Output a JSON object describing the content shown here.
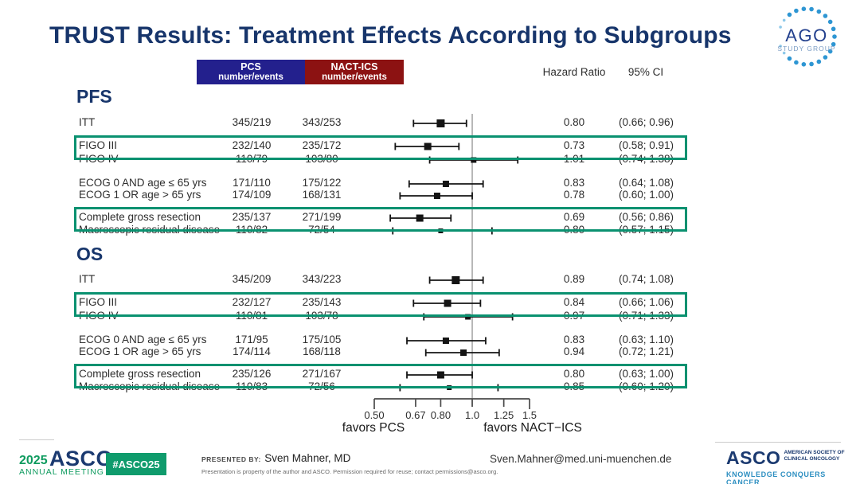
{
  "title": "TRUST Results: Treatment Effects According to Subgroups",
  "ago_logo": {
    "name": "AGO",
    "subtitle": "STUDY GROUP"
  },
  "columns": {
    "pcs_line1": "PCS",
    "pcs_line2": "number/events",
    "nact_line1": "NACT-ICS",
    "nact_line2": "number/events",
    "hazard_ratio": "Hazard Ratio",
    "ci": "95% CI"
  },
  "colors": {
    "pcs_header_bg": "#23208d",
    "nact_header_bg": "#8c1212",
    "highlight_green": "#0a9170",
    "title_navy": "#17356b",
    "asco_green": "#0f9b6c",
    "asco_navy": "#1b3a70",
    "tagline_blue": "#2d8fc1"
  },
  "chart_data": {
    "type": "forest",
    "scale": "log",
    "x_range": [
      0.5,
      1.5
    ],
    "x_ticks": [
      0.5,
      0.67,
      0.8,
      1.0,
      1.25,
      1.5
    ],
    "x_tick_labels": [
      "0.50",
      "0.67",
      "0.80",
      "1.0",
      "1.25",
      "1.5"
    ],
    "reference_line": 1.0,
    "favors_left": "favors PCS",
    "favors_right": "favors NACT−ICS",
    "sections": [
      {
        "label": "PFS",
        "rows": [
          {
            "label": "ITT",
            "pcs": "345/219",
            "nact": "343/253",
            "hr": 0.8,
            "ci_low": 0.66,
            "ci_high": 0.96,
            "hr_text": "0.80",
            "ci_text": "(0.66; 0.96)",
            "highlight": false,
            "marker": 10
          },
          {
            "label": "FIGO III",
            "pcs": "232/140",
            "nact": "235/172",
            "hr": 0.73,
            "ci_low": 0.58,
            "ci_high": 0.91,
            "hr_text": "0.73",
            "ci_text": "(0.58; 0.91)",
            "highlight": true,
            "marker": 9
          },
          {
            "label": "FIGO IV",
            "pcs": "110/79",
            "nact": "103/80",
            "hr": 1.01,
            "ci_low": 0.74,
            "ci_high": 1.38,
            "hr_text": "1.01",
            "ci_text": "(0.74; 1.38)",
            "highlight": false,
            "marker": 7
          },
          {
            "label": "ECOG 0 AND age ≤ 65 yrs",
            "pcs": "171/110",
            "nact": "175/122",
            "hr": 0.83,
            "ci_low": 0.64,
            "ci_high": 1.08,
            "hr_text": "0.83",
            "ci_text": "(0.64; 1.08)",
            "highlight": false,
            "marker": 8
          },
          {
            "label": "ECOG 1 OR age > 65 yrs",
            "pcs": "174/109",
            "nact": "168/131",
            "hr": 0.78,
            "ci_low": 0.6,
            "ci_high": 1.0,
            "hr_text": "0.78",
            "ci_text": "(0.60; 1.00)",
            "highlight": false,
            "marker": 8
          },
          {
            "label": "Complete gross resection",
            "pcs": "235/137",
            "nact": "271/199",
            "hr": 0.69,
            "ci_low": 0.56,
            "ci_high": 0.86,
            "hr_text": "0.69",
            "ci_text": "(0.56; 0.86)",
            "highlight": true,
            "marker": 9
          },
          {
            "label": "Macroscopic residual disease",
            "pcs": "110/82",
            "nact": "72/54",
            "hr": 0.8,
            "ci_low": 0.57,
            "ci_high": 1.15,
            "hr_text": "0.80",
            "ci_text": "(0.57; 1.15)",
            "highlight": false,
            "marker": 6
          }
        ]
      },
      {
        "label": "OS",
        "rows": [
          {
            "label": "ITT",
            "pcs": "345/209",
            "nact": "343/223",
            "hr": 0.89,
            "ci_low": 0.74,
            "ci_high": 1.08,
            "hr_text": "0.89",
            "ci_text": "(0.74; 1.08)",
            "highlight": false,
            "marker": 10
          },
          {
            "label": "FIGO III",
            "pcs": "232/127",
            "nact": "235/143",
            "hr": 0.84,
            "ci_low": 0.66,
            "ci_high": 1.06,
            "hr_text": "0.84",
            "ci_text": "(0.66; 1.06)",
            "highlight": true,
            "marker": 9
          },
          {
            "label": "FIGO IV",
            "pcs": "110/81",
            "nact": "103/78",
            "hr": 0.97,
            "ci_low": 0.71,
            "ci_high": 1.33,
            "hr_text": "0.97",
            "ci_text": "(0.71; 1.33)",
            "highlight": false,
            "marker": 7
          },
          {
            "label": "ECOG 0 AND age ≤ 65 yrs",
            "pcs": "171/95",
            "nact": "175/105",
            "hr": 0.83,
            "ci_low": 0.63,
            "ci_high": 1.1,
            "hr_text": "0.83",
            "ci_text": "(0.63; 1.10)",
            "highlight": false,
            "marker": 8
          },
          {
            "label": "ECOG 1 OR age > 65 yrs",
            "pcs": "174/114",
            "nact": "168/118",
            "hr": 0.94,
            "ci_low": 0.72,
            "ci_high": 1.21,
            "hr_text": "0.94",
            "ci_text": "(0.72; 1.21)",
            "highlight": false,
            "marker": 8
          },
          {
            "label": "Complete gross resection",
            "pcs": "235/126",
            "nact": "271/167",
            "hr": 0.8,
            "ci_low": 0.63,
            "ci_high": 1.0,
            "hr_text": "0.80",
            "ci_text": "(0.63; 1.00)",
            "highlight": true,
            "marker": 9
          },
          {
            "label": "Macroscopic residual disease",
            "pcs": "110/83",
            "nact": "72/56",
            "hr": 0.85,
            "ci_low": 0.6,
            "ci_high": 1.2,
            "hr_text": "0.85",
            "ci_text": "(0.60; 1.20)",
            "highlight": false,
            "marker": 6
          }
        ]
      }
    ]
  },
  "footer": {
    "meeting_year": "2025",
    "meeting_asco": "ASCO",
    "meeting_name": "ANNUAL MEETING",
    "hashtag": "#ASCO25",
    "presented_by_label": "PRESENTED BY:",
    "presenter": "Sven Mahner, MD",
    "smallprint": "Presentation is property of the author and ASCO. Permission required for reuse; contact permissions@asco.org.",
    "email": "Sven.Mahner@med.uni-muenchen.de",
    "asco_word": "ASCO",
    "asco_society_line1": "AMERICAN SOCIETY OF",
    "asco_society_line2": "CLINICAL ONCOLOGY",
    "asco_tagline": "KNOWLEDGE CONQUERS CANCER"
  }
}
